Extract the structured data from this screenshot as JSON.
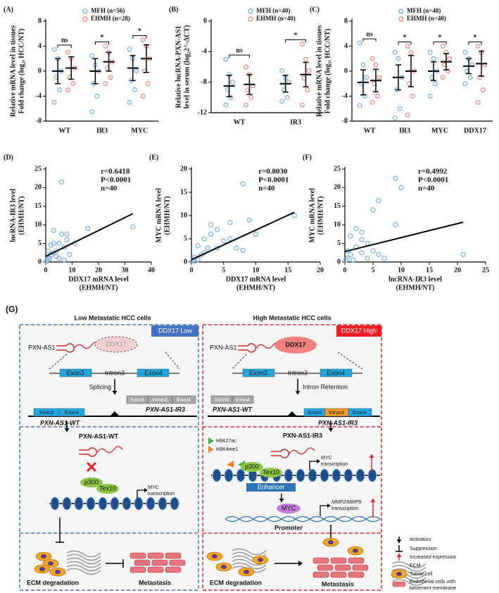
{
  "chart_data": [
    {
      "type": "strip",
      "label": "(A)",
      "ylabel": [
        "Relative mRNA level in tissues",
        "Fold change (log₂, HCC/NT)"
      ],
      "categories": [
        "WT",
        "IR3",
        "MYC"
      ],
      "ylim": [
        -8,
        8
      ],
      "yticks": [
        -8,
        -4,
        0,
        4,
        8
      ],
      "series": [
        {
          "name": "MFH (n=56)",
          "color": "#7fb2e5",
          "values": [
            0,
            0,
            0.5
          ],
          "errors": [
            2,
            2,
            2
          ],
          "points": [
            [
              3.5,
              2,
              0,
              -1,
              -3,
              -5
            ],
            [
              2.5,
              1,
              0,
              -2,
              -4,
              -6.5
            ],
            [
              3.5,
              2,
              0,
              -1.5,
              -3,
              -5
            ]
          ]
        },
        {
          "name": "EHMH (n=28)",
          "color": "#f28b8b",
          "values": [
            0.5,
            1.5,
            2
          ],
          "errors": [
            1.8,
            1.5,
            2.2
          ],
          "points": [
            [
              3,
              2,
              0.5,
              -1,
              -2,
              -3
            ],
            [
              4,
              3,
              1.5,
              0.5,
              -1,
              -2
            ],
            [
              5,
              4,
              2,
              0,
              -2,
              -4
            ]
          ]
        }
      ],
      "significance": [
        "ns",
        "*",
        "*"
      ]
    },
    {
      "type": "strip",
      "label": "(B)",
      "ylabel": [
        "Relative lncRNA-PXN-AS1",
        "level in serum (log₂2^-ΔCT)"
      ],
      "categories": [
        "WT",
        "IR3"
      ],
      "ylim": [
        -12,
        0
      ],
      "yticks": [
        -12,
        -8,
        -4,
        0
      ],
      "series": [
        {
          "name": "MFH (n=40)",
          "color": "#7fb2e5",
          "values": [
            -8.5,
            -8.2
          ],
          "errors": [
            1.4,
            1.1
          ],
          "points": [
            [
              -5,
              -7,
              -8,
              -9,
              -10,
              -11
            ],
            [
              -6.5,
              -7.5,
              -8,
              -9,
              -10,
              -10.5
            ]
          ]
        },
        {
          "name": "EHMH (n=40)",
          "color": "#f28b8b",
          "values": [
            -8.3,
            -7
          ],
          "errors": [
            1.3,
            1.6
          ],
          "points": [
            [
              -6,
              -7,
              -8.5,
              -9,
              -10,
              -11
            ],
            [
              -3,
              -5,
              -6.5,
              -7.5,
              -9,
              -11
            ]
          ]
        }
      ],
      "significance": [
        "ns",
        "*"
      ]
    },
    {
      "type": "strip",
      "label": "(C)",
      "ylabel": [
        "Relative mRNA level in tissues",
        "Fold change (log₂, HCC/NT)"
      ],
      "categories": [
        "WT",
        "IR3",
        "MYC",
        "DDX17"
      ],
      "ylim": [
        -8,
        8
      ],
      "yticks": [
        -8,
        -4,
        0,
        4,
        8
      ],
      "series": [
        {
          "name": "MFH (n=40)",
          "color": "#7fb2e5",
          "values": [
            -1.8,
            -1,
            0,
            0.8
          ],
          "errors": [
            2,
            2,
            1.5,
            1.2
          ],
          "points": [
            [
              4.5,
              1,
              -1,
              -2,
              -4,
              -5.5
            ],
            [
              3,
              2,
              -1,
              -3,
              -6,
              -7.5
            ],
            [
              3,
              2,
              0,
              -1,
              -2,
              -4
            ],
            [
              3,
              2,
              1,
              0,
              -1,
              -2
            ]
          ]
        },
        {
          "name": "EHMH (n=40)",
          "color": "#f28b8b",
          "values": [
            -1.5,
            0,
            1.5,
            1.2
          ],
          "errors": [
            1.8,
            2.5,
            1.3,
            2
          ],
          " points": null,
          "points": [
            [
              2,
              1,
              -1,
              -2,
              -4,
              -5
            ],
            [
              4,
              3,
              0,
              -2,
              -4,
              -7
            ],
            [
              4,
              3,
              2,
              1,
              0,
              -1
            ],
            [
              4,
              3,
              1,
              -1,
              -3,
              -5
            ]
          ]
        }
      ],
      "significance": [
        "ns",
        "*",
        "*",
        "*"
      ]
    },
    {
      "type": "scatter",
      "label": "(D)",
      "ylabel": [
        "lncRNA-IR3 level",
        "(EHMH/NT)"
      ],
      "xlabel": [
        "DDX17 mRNA level",
        "(EHMH/NT)"
      ],
      "xlim": [
        0,
        40
      ],
      "xticks": [
        0,
        10,
        20,
        30,
        40
      ],
      "ylim": [
        0,
        25
      ],
      "yticks": [
        0,
        5,
        10,
        15,
        20,
        25
      ],
      "annotations": [
        "r=0.6418",
        "P<0.0001",
        "n=40"
      ],
      "series": [
        {
          "color": "#7fb2e5",
          "x": [
            0.5,
            1,
            1,
            2,
            2,
            3,
            3,
            4,
            5,
            5,
            6,
            6,
            7,
            8,
            8,
            9,
            11,
            16,
            33,
            0.3,
            1.5,
            4,
            7,
            3
          ],
          "y": [
            0.5,
            1,
            3,
            4.5,
            2,
            5,
            8.5,
            3,
            1,
            5,
            7.5,
            21.5,
            4,
            6,
            7.5,
            2,
            5,
            9,
            9.5,
            0.2,
            0.8,
            1.5,
            0.5,
            2.5
          ]
        }
      ],
      "fit": {
        "x": [
          0,
          33
        ],
        "y": [
          1.5,
          13
        ]
      }
    },
    {
      "type": "scatter",
      "label": "(E)",
      "ylabel": [
        "MYC mRNA level",
        "(EHMH/NT)"
      ],
      "xlabel": [
        "DDX17 mRNA level",
        "(EHMH/NT)"
      ],
      "xlim": [
        0,
        20
      ],
      "xticks": [
        0,
        5,
        10,
        15,
        20
      ],
      "ylim": [
        0,
        20
      ],
      "yticks": [
        0,
        5,
        10,
        15,
        20
      ],
      "annotations": [
        "r=0.8030",
        "P<0.0001",
        "n=40"
      ],
      "series": [
        {
          "color": "#7fb2e5",
          "x": [
            0.2,
            0.5,
            1,
            1,
            2,
            2,
            3,
            3,
            4,
            4,
            5,
            6,
            7,
            8,
            8,
            9,
            10,
            16,
            1.5,
            0.5,
            2.5,
            6
          ],
          "y": [
            0.3,
            1,
            3.5,
            0.5,
            2,
            5,
            6,
            8,
            3,
            7,
            4.5,
            5,
            3,
            2.5,
            16.8,
            9,
            6,
            10,
            1.5,
            0.2,
            3,
            8.5
          ]
        }
      ],
      "fit": {
        "x": [
          0,
          16
        ],
        "y": [
          0.5,
          10.7
        ]
      }
    },
    {
      "type": "scatter",
      "label": "(F)",
      "ylabel": [
        "MYC mRNA level",
        "(EHMH/NT)"
      ],
      "xlabel": [
        "lncRNA-IR3 level",
        "(EHMH/NT)"
      ],
      "xlim": [
        0,
        25
      ],
      "xticks": [
        0,
        5,
        10,
        15,
        20,
        25
      ],
      "ylim": [
        0,
        25
      ],
      "yticks": [
        0,
        5,
        10,
        15,
        20,
        25
      ],
      "annotations": [
        "r=0.4992",
        "P<0.0001",
        "n=40"
      ],
      "series": [
        {
          "color": "#7fb2e5",
          "x": [
            0.2,
            0.5,
            1,
            1,
            2,
            2,
            3,
            3,
            4,
            4,
            5,
            5,
            6,
            6,
            7,
            9,
            9,
            10,
            21,
            0.5,
            1.5,
            3
          ],
          "y": [
            0.5,
            3,
            2,
            7,
            9,
            4,
            6,
            2.5,
            1,
            5,
            3,
            14,
            2,
            16.5,
            1,
            10,
            22.5,
            20,
            2,
            1,
            0.5,
            8
          ]
        }
      ],
      "fit": {
        "x": [
          0,
          21
        ],
        "y": [
          2.8,
          10.7
        ]
      }
    }
  ],
  "diagram": {
    "labels": [
      "(G)",
      "Low Metastatic HCC cells",
      "High Metastatic HCC cells",
      "DDX17 Low",
      "DDX17 High",
      "PXN-AS1",
      "DDX17",
      "Exon3",
      "Intron3",
      "Exon4",
      "Splicing",
      "Exon3",
      "Intron3",
      "Exon4",
      "Exon3",
      "Exon4",
      "PXN-AS1-WT",
      "PXN-AS1-IR3",
      "PXN-AS1",
      "DDX17",
      "Exon3",
      "Intron3",
      "Exon4",
      "Intron Retention",
      "Exon3",
      "Exon4",
      "PXN-AS1-WT",
      "Exon3",
      "Intron3",
      "Exon4",
      "PXN-AS1-IR3",
      "PXN-AS1-WT",
      "p300",
      "Tex10",
      "MYC",
      "transcription",
      "PXN-AS1-IR3",
      "H3K27ac",
      "H3K4me1",
      "p300",
      "Tex10",
      "MYC",
      "transcription",
      "Enhancer",
      "MYC",
      "MMP2/MMP9",
      "transcription",
      "Promoter",
      "ECM degradation",
      "Metastasis",
      "ECM degradation",
      "Metastasis",
      "Activation",
      "Suppression",
      "Increased expression",
      "ECM",
      "Tumor cell",
      "Endothelial cells with",
      "basement membrane"
    ]
  }
}
